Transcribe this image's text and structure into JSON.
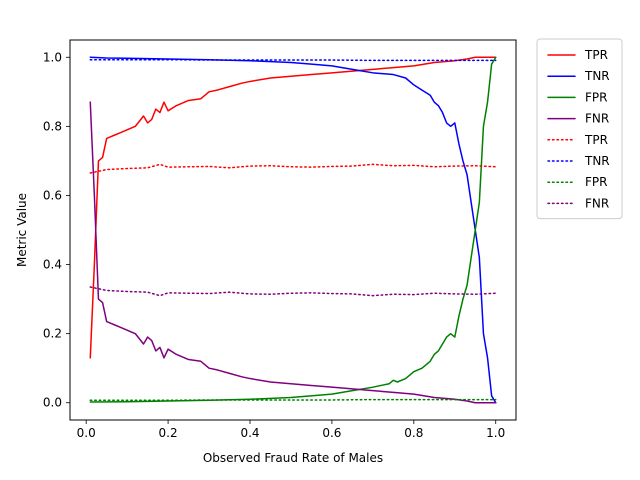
{
  "chart_data": {
    "type": "line",
    "title": "",
    "xlabel": "Observed Fraud Rate of Males",
    "ylabel": "Metric Value",
    "xlim": [
      -0.0395,
      1.0495
    ],
    "ylim": [
      -0.05,
      1.05
    ],
    "xticks": [
      0.0,
      0.2,
      0.4,
      0.6,
      0.8,
      1.0
    ],
    "xtick_labels": [
      "0.0",
      "0.2",
      "0.4",
      "0.6",
      "0.8",
      "1.0"
    ],
    "yticks": [
      0.0,
      0.2,
      0.4,
      0.6,
      0.8,
      1.0
    ],
    "ytick_labels": [
      "0.0",
      "0.2",
      "0.4",
      "0.6",
      "0.8",
      "1.0"
    ],
    "grid": false,
    "legend_position": "outside-right",
    "series": [
      {
        "name": "TPR",
        "color": "#ff0000",
        "style": "solid",
        "x": [
          0.01,
          0.02,
          0.03,
          0.04,
          0.05,
          0.06,
          0.07,
          0.08,
          0.09,
          0.1,
          0.12,
          0.14,
          0.15,
          0.16,
          0.17,
          0.18,
          0.19,
          0.2,
          0.22,
          0.24,
          0.25,
          0.28,
          0.3,
          0.32,
          0.35,
          0.38,
          0.4,
          0.45,
          0.5,
          0.55,
          0.6,
          0.65,
          0.7,
          0.75,
          0.8,
          0.85,
          0.9,
          0.93,
          0.95,
          1.0
        ],
        "y": [
          0.13,
          0.4,
          0.7,
          0.71,
          0.765,
          0.77,
          0.775,
          0.78,
          0.785,
          0.79,
          0.8,
          0.83,
          0.81,
          0.82,
          0.85,
          0.84,
          0.87,
          0.845,
          0.86,
          0.87,
          0.875,
          0.88,
          0.9,
          0.905,
          0.915,
          0.925,
          0.93,
          0.94,
          0.945,
          0.95,
          0.955,
          0.96,
          0.965,
          0.97,
          0.975,
          0.985,
          0.99,
          0.995,
          1.0,
          1.0
        ]
      },
      {
        "name": "TNR",
        "color": "#0000ff",
        "style": "solid",
        "x": [
          0.01,
          0.05,
          0.1,
          0.2,
          0.3,
          0.4,
          0.5,
          0.55,
          0.6,
          0.65,
          0.7,
          0.75,
          0.78,
          0.8,
          0.82,
          0.84,
          0.85,
          0.86,
          0.87,
          0.88,
          0.89,
          0.9,
          0.91,
          0.92,
          0.93,
          0.94,
          0.95,
          0.96,
          0.97,
          0.98,
          0.99,
          1.0
        ],
        "y": [
          1.0,
          0.998,
          0.997,
          0.995,
          0.993,
          0.99,
          0.985,
          0.98,
          0.975,
          0.965,
          0.955,
          0.95,
          0.94,
          0.92,
          0.905,
          0.89,
          0.87,
          0.86,
          0.84,
          0.81,
          0.8,
          0.81,
          0.75,
          0.7,
          0.66,
          0.58,
          0.5,
          0.42,
          0.2,
          0.13,
          0.02,
          0.0
        ]
      },
      {
        "name": "FPR",
        "color": "#008000",
        "style": "solid",
        "x": [
          0.01,
          0.1,
          0.2,
          0.3,
          0.4,
          0.5,
          0.6,
          0.65,
          0.7,
          0.72,
          0.74,
          0.75,
          0.76,
          0.78,
          0.8,
          0.82,
          0.84,
          0.85,
          0.86,
          0.87,
          0.88,
          0.89,
          0.9,
          0.91,
          0.92,
          0.93,
          0.94,
          0.95,
          0.96,
          0.97,
          0.98,
          0.99,
          1.0
        ],
        "y": [
          0.002,
          0.003,
          0.005,
          0.007,
          0.01,
          0.015,
          0.025,
          0.035,
          0.045,
          0.05,
          0.055,
          0.065,
          0.06,
          0.07,
          0.09,
          0.1,
          0.12,
          0.14,
          0.15,
          0.17,
          0.19,
          0.2,
          0.19,
          0.25,
          0.3,
          0.34,
          0.42,
          0.5,
          0.58,
          0.8,
          0.87,
          0.98,
          1.0
        ]
      },
      {
        "name": "FNR",
        "color": "#800080",
        "style": "solid",
        "x": [
          0.01,
          0.02,
          0.03,
          0.04,
          0.05,
          0.06,
          0.07,
          0.08,
          0.09,
          0.1,
          0.12,
          0.14,
          0.15,
          0.16,
          0.17,
          0.18,
          0.19,
          0.2,
          0.22,
          0.24,
          0.25,
          0.28,
          0.3,
          0.32,
          0.35,
          0.38,
          0.4,
          0.45,
          0.5,
          0.55,
          0.6,
          0.65,
          0.7,
          0.75,
          0.8,
          0.85,
          0.9,
          0.93,
          0.95,
          1.0
        ],
        "y": [
          0.87,
          0.6,
          0.3,
          0.29,
          0.235,
          0.23,
          0.225,
          0.22,
          0.215,
          0.21,
          0.2,
          0.17,
          0.19,
          0.18,
          0.15,
          0.16,
          0.13,
          0.155,
          0.14,
          0.13,
          0.125,
          0.12,
          0.1,
          0.095,
          0.085,
          0.075,
          0.07,
          0.06,
          0.055,
          0.05,
          0.045,
          0.04,
          0.035,
          0.03,
          0.025,
          0.015,
          0.01,
          0.005,
          0.0,
          0.0
        ]
      },
      {
        "name": "TPR",
        "color": "#ff0000",
        "style": "dotted",
        "x": [
          0.01,
          0.05,
          0.1,
          0.15,
          0.18,
          0.2,
          0.25,
          0.3,
          0.35,
          0.4,
          0.45,
          0.5,
          0.55,
          0.6,
          0.65,
          0.7,
          0.75,
          0.8,
          0.85,
          0.9,
          0.95,
          1.0
        ],
        "y": [
          0.665,
          0.675,
          0.678,
          0.68,
          0.69,
          0.682,
          0.683,
          0.684,
          0.68,
          0.685,
          0.686,
          0.683,
          0.682,
          0.684,
          0.685,
          0.69,
          0.686,
          0.687,
          0.683,
          0.685,
          0.686,
          0.683
        ]
      },
      {
        "name": "TNR",
        "color": "#0000ff",
        "style": "dotted",
        "x": [
          0.01,
          0.1,
          0.2,
          0.3,
          0.4,
          0.5,
          0.6,
          0.7,
          0.8,
          0.9,
          1.0
        ],
        "y": [
          0.993,
          0.993,
          0.993,
          0.992,
          0.992,
          0.992,
          0.992,
          0.991,
          0.991,
          0.991,
          0.991
        ]
      },
      {
        "name": "FPR",
        "color": "#008000",
        "style": "dotted",
        "x": [
          0.01,
          0.1,
          0.2,
          0.3,
          0.4,
          0.5,
          0.6,
          0.7,
          0.8,
          0.9,
          1.0
        ],
        "y": [
          0.007,
          0.007,
          0.007,
          0.008,
          0.008,
          0.008,
          0.008,
          0.009,
          0.009,
          0.009,
          0.009
        ]
      },
      {
        "name": "FNR",
        "color": "#800080",
        "style": "dotted",
        "x": [
          0.01,
          0.05,
          0.1,
          0.15,
          0.18,
          0.2,
          0.25,
          0.3,
          0.35,
          0.4,
          0.45,
          0.5,
          0.55,
          0.6,
          0.65,
          0.7,
          0.75,
          0.8,
          0.85,
          0.9,
          0.95,
          1.0
        ],
        "y": [
          0.335,
          0.325,
          0.322,
          0.32,
          0.31,
          0.318,
          0.317,
          0.316,
          0.32,
          0.315,
          0.314,
          0.317,
          0.318,
          0.316,
          0.315,
          0.31,
          0.314,
          0.313,
          0.317,
          0.315,
          0.314,
          0.317
        ]
      }
    ]
  }
}
